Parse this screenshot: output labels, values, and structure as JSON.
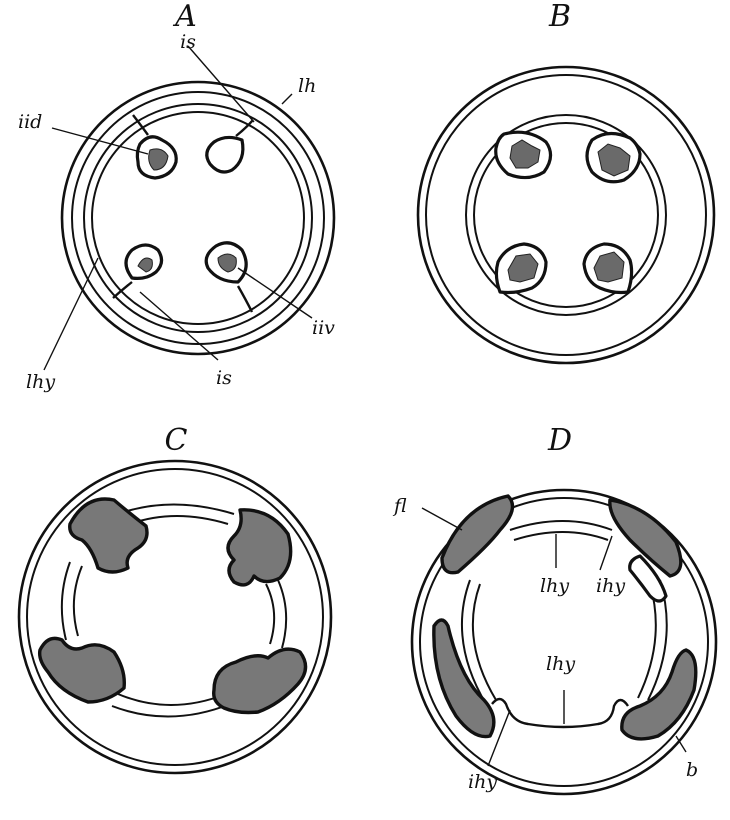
{
  "panels": {
    "a": {
      "letter": "A",
      "labels": {
        "is_top": "is",
        "lh": "lh",
        "iid": "iid",
        "iiv": "iiv",
        "lhy": "lhy",
        "is_bottom": "is"
      }
    },
    "b": {
      "letter": "B"
    },
    "c": {
      "letter": "C"
    },
    "d": {
      "letter": "D",
      "labels": {
        "fl": "fl",
        "lhy_upper": "lhy",
        "ihy_upper": "ihy",
        "lhy_lower": "lhy",
        "ihy_lower": "ihy",
        "b": "b"
      }
    }
  }
}
